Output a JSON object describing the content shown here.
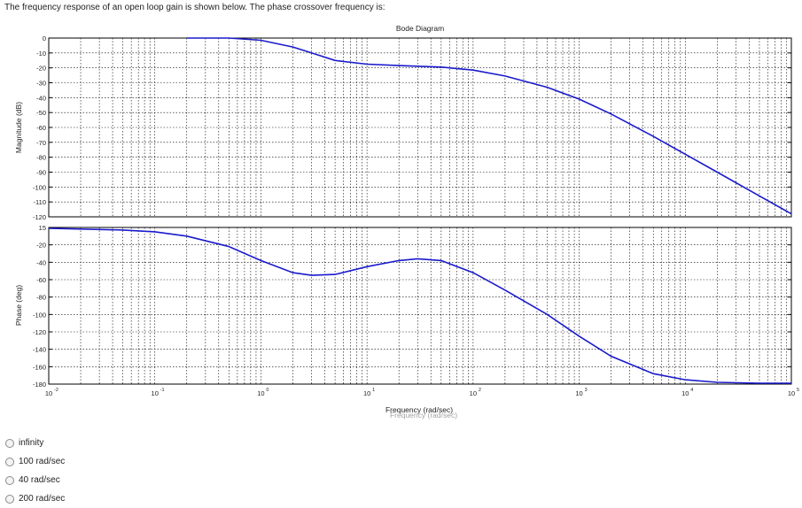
{
  "question": "The frequency response of an open loop gain is shown below. The phase crossover frequency is:",
  "chart_data": {
    "type": "line",
    "title": "Bode Diagram",
    "xlabel": "Frequency  (rad/sec)",
    "xlabel_overlap": "Frequency  (rad/sec)",
    "xscale": "log",
    "xlim": [
      0.01,
      100000
    ],
    "grid": true,
    "x_tick_labels": [
      {
        "base": "10",
        "exp": "-2"
      },
      {
        "base": "10",
        "exp": "-1"
      },
      {
        "base": "10",
        "exp": "0"
      },
      {
        "base": "10",
        "exp": "1"
      },
      {
        "base": "10",
        "exp": "2"
      },
      {
        "base": "10",
        "exp": "3"
      },
      {
        "base": "10",
        "exp": "4"
      },
      {
        "base": "10",
        "exp": "5"
      }
    ],
    "panels": [
      {
        "name": "magnitude",
        "ylabel": "Magnitude (dB)",
        "ylim": [
          -120,
          0
        ],
        "yticks": [
          "0",
          "-10",
          "-20",
          "-30",
          "-40",
          "-50",
          "-60",
          "-70",
          "-80",
          "-90",
          "-100",
          "-110",
          "-120"
        ],
        "series": [
          {
            "color": "#1a1acc",
            "x": [
              0.2,
              0.5,
              1,
              2,
              3,
              5,
              10,
              20,
              50,
              100,
              200,
              500,
              1000,
              2000,
              5000,
              10000,
              20000,
              50000,
              100000
            ],
            "y": [
              0,
              0,
              -1.5,
              -6,
              -10,
              -15,
              -17.5,
              -18.5,
              -19.5,
              -21.5,
              -25.5,
              -33,
              -41,
              -51,
              -66,
              -78,
              -90,
              -106,
              -118
            ]
          }
        ]
      },
      {
        "name": "phase",
        "ylabel": "Phase (deg)",
        "ylim": [
          -180,
          0
        ],
        "yticks": [
          "15",
          "-20",
          "-40",
          "-60",
          "-80",
          "-100",
          "-120",
          "-140",
          "-160",
          "-180"
        ],
        "series": [
          {
            "color": "#1a1acc",
            "x": [
              0.01,
              0.05,
              0.1,
              0.2,
              0.5,
              1,
              2,
              3,
              5,
              10,
              20,
              30,
              50,
              100,
              200,
              500,
              1000,
              2000,
              5000,
              10000,
              20000,
              50000,
              100000
            ],
            "y": [
              -1,
              -3,
              -5,
              -10,
              -22,
              -38,
              -52,
              -55,
              -54,
              -45,
              -38,
              -36,
              -38,
              -52,
              -72,
              -100,
              -125,
              -148,
              -168,
              -175,
              -178,
              -179,
              -179
            ]
          }
        ]
      }
    ]
  },
  "options": [
    {
      "label": "infinity"
    },
    {
      "label": "100  rad/sec"
    },
    {
      "label": "40  rad/sec"
    },
    {
      "label": "200  rad/sec"
    }
  ]
}
